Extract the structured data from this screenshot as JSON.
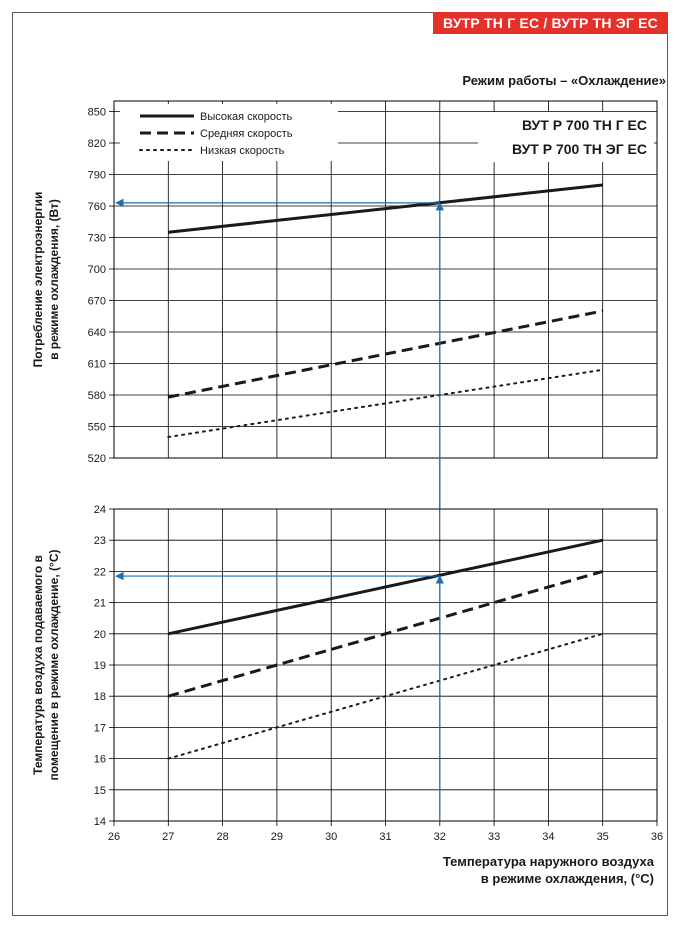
{
  "header": {
    "model_badge": "ВУТР ТН Г ЕС / ВУТР ТН ЭГ ЕС",
    "mode_title": "Режим работы – «Охлаждение»"
  },
  "colors": {
    "badge": "#e4322b",
    "arrow": "#1a6fb5",
    "line": "#1a1a1a"
  },
  "chart_data": [
    {
      "type": "line",
      "ylabel": [
        "Потребление электроэнергии",
        "в режиме охлаждения, (Вт)"
      ],
      "ylim": [
        520,
        860
      ],
      "yticks": [
        520,
        550,
        580,
        610,
        640,
        670,
        700,
        730,
        760,
        790,
        820,
        850
      ],
      "xlim": [
        26,
        36
      ],
      "models": [
        "ВУТ Р 700 ТН Г ЕС",
        "ВУТ Р 700 ТН ЭГ ЕС"
      ],
      "series": [
        {
          "name": "Высокая скорость",
          "style": "solid",
          "x": [
            27,
            35
          ],
          "y": [
            735,
            780
          ]
        },
        {
          "name": "Средняя скорость",
          "style": "dashed",
          "x": [
            27,
            35
          ],
          "y": [
            578,
            660
          ]
        },
        {
          "name": "Низкая скорость",
          "style": "dotted",
          "x": [
            27,
            35
          ],
          "y": [
            540,
            604
          ]
        }
      ],
      "legend": "top-left",
      "grid": true,
      "guide": {
        "x": 32,
        "y": 763
      }
    },
    {
      "type": "line",
      "ylabel": [
        "Температура воздуха подаваемого в",
        "помещение в режиме охлаждение, (°С)"
      ],
      "ylim": [
        14,
        24
      ],
      "yticks": [
        14,
        15,
        16,
        17,
        18,
        19,
        20,
        21,
        22,
        23,
        24
      ],
      "xlim": [
        26,
        36
      ],
      "xticks": [
        26,
        27,
        28,
        29,
        30,
        31,
        32,
        33,
        34,
        35,
        36
      ],
      "xlabel": [
        "Температура наружного воздуха",
        "в режиме охлаждения, (°С)"
      ],
      "series": [
        {
          "style": "solid",
          "x": [
            27,
            35
          ],
          "y": [
            20,
            23
          ]
        },
        {
          "style": "dashed",
          "x": [
            27,
            35
          ],
          "y": [
            18,
            22
          ]
        },
        {
          "style": "dotted",
          "x": [
            27,
            35
          ],
          "y": [
            16,
            20
          ]
        }
      ],
      "grid": true,
      "guide": {
        "x": 32,
        "y": 21.85
      }
    }
  ]
}
